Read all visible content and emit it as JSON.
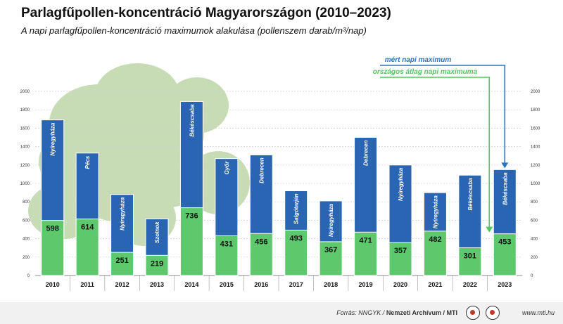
{
  "title": "Parlagfűpollen-koncentráció Magyarországon (2010–2023)",
  "subtitle": "A napi parlagfűpollen-koncentráció maximumok alakulása (pollenszem darab/m³/nap)",
  "legend": {
    "max_label": "mért napi maximum",
    "avg_label": "országos átlag napi maximuma"
  },
  "footer": {
    "source_prefix": "Forrás: NNGYK / ",
    "source_bold": "Nemzeti Archívum / MTI",
    "url": "www.mti.hu"
  },
  "colors": {
    "max": "#2a65b3",
    "avg": "#5ec96c",
    "legend_max": "#2a74c0",
    "legend_avg": "#54c463"
  },
  "chart_data": {
    "type": "bar",
    "categories": [
      "2010",
      "2011",
      "2012",
      "2013",
      "2014",
      "2015",
      "2016",
      "2017",
      "2018",
      "2019",
      "2020",
      "2021",
      "2022",
      "2023"
    ],
    "series": [
      {
        "name": "mért napi maximum",
        "values": [
          1690,
          1330,
          880,
          615,
          1890,
          1270,
          1310,
          920,
          810,
          1500,
          1200,
          900,
          1090,
          1150
        ],
        "locations": [
          "Nyíregyháza",
          "Pécs",
          "Nyíregyháza",
          "Szolnok",
          "Békéscsaba",
          "Győr",
          "Debrecen",
          "Salgótarján",
          "Nyíregyháza",
          "Debrecen",
          "Nyíregyháza",
          "Nyíregyháza",
          "Békéscsaba",
          "Békéscsaba"
        ]
      },
      {
        "name": "országos átlag napi maximuma",
        "values": [
          598,
          614,
          251,
          219,
          736,
          431,
          456,
          493,
          367,
          471,
          357,
          482,
          301,
          453
        ]
      }
    ],
    "yticks": [
      0,
      200,
      400,
      600,
      800,
      1000,
      1200,
      1400,
      1600,
      1800,
      2000
    ],
    "ylim": [
      0,
      2000
    ],
    "grid": true
  }
}
